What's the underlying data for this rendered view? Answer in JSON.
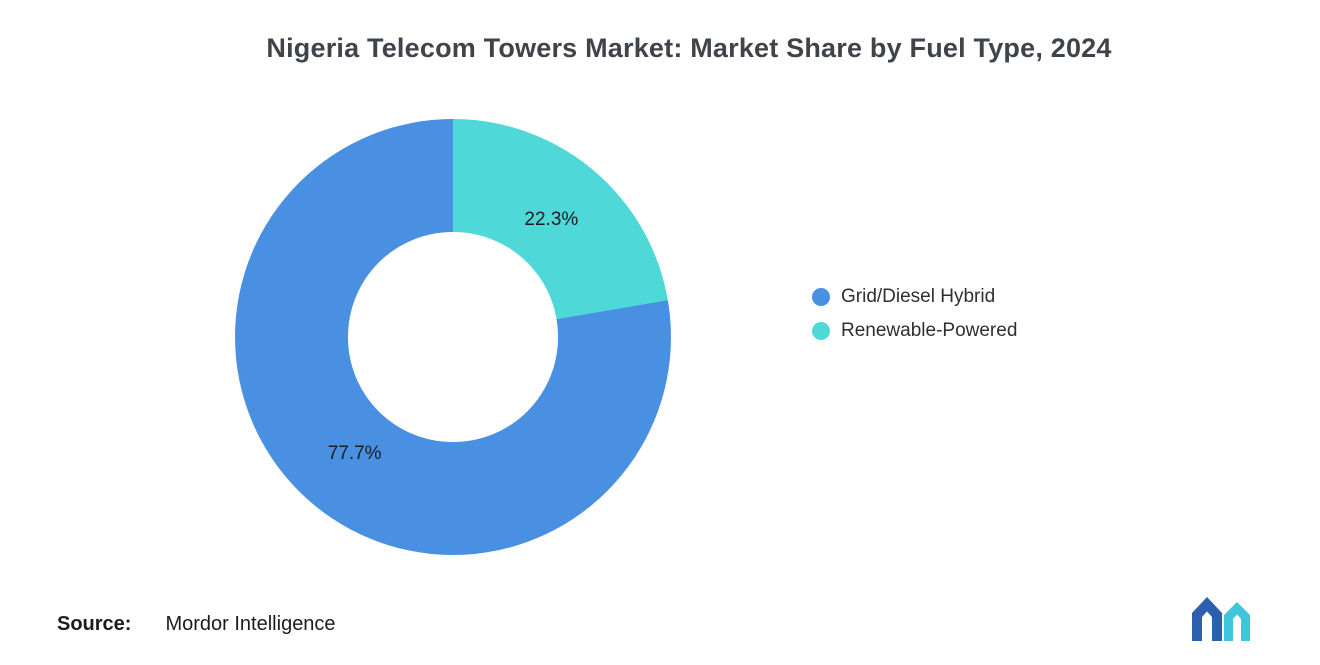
{
  "chart_data": {
    "type": "pie",
    "variant": "donut",
    "title": "Nigeria Telecom Towers Market: Market Share by Fuel Type, 2024",
    "start_angle_deg_from_top": 0,
    "direction": "clockwise",
    "inner_radius_ratio": 0.48,
    "legend_position": "right",
    "slices": [
      {
        "label": "Renewable-Powered",
        "value": 22.3,
        "display": "22.3%",
        "color": "#4FD8D8"
      },
      {
        "label": "Grid/Diesel Hybrid",
        "value": 77.7,
        "display": "77.7%",
        "color": "#4A90E2"
      }
    ],
    "legend": [
      {
        "label": "Grid/Diesel Hybrid",
        "color": "#4A90E2"
      },
      {
        "label": "Renewable-Powered",
        "color": "#4FD8D8"
      }
    ]
  },
  "source": {
    "label": "Source:",
    "value": "Mordor Intelligence"
  },
  "logo": {
    "name": "mordor-intelligence-logo",
    "blue": "#2C5FAC",
    "teal": "#3EC6DB"
  }
}
